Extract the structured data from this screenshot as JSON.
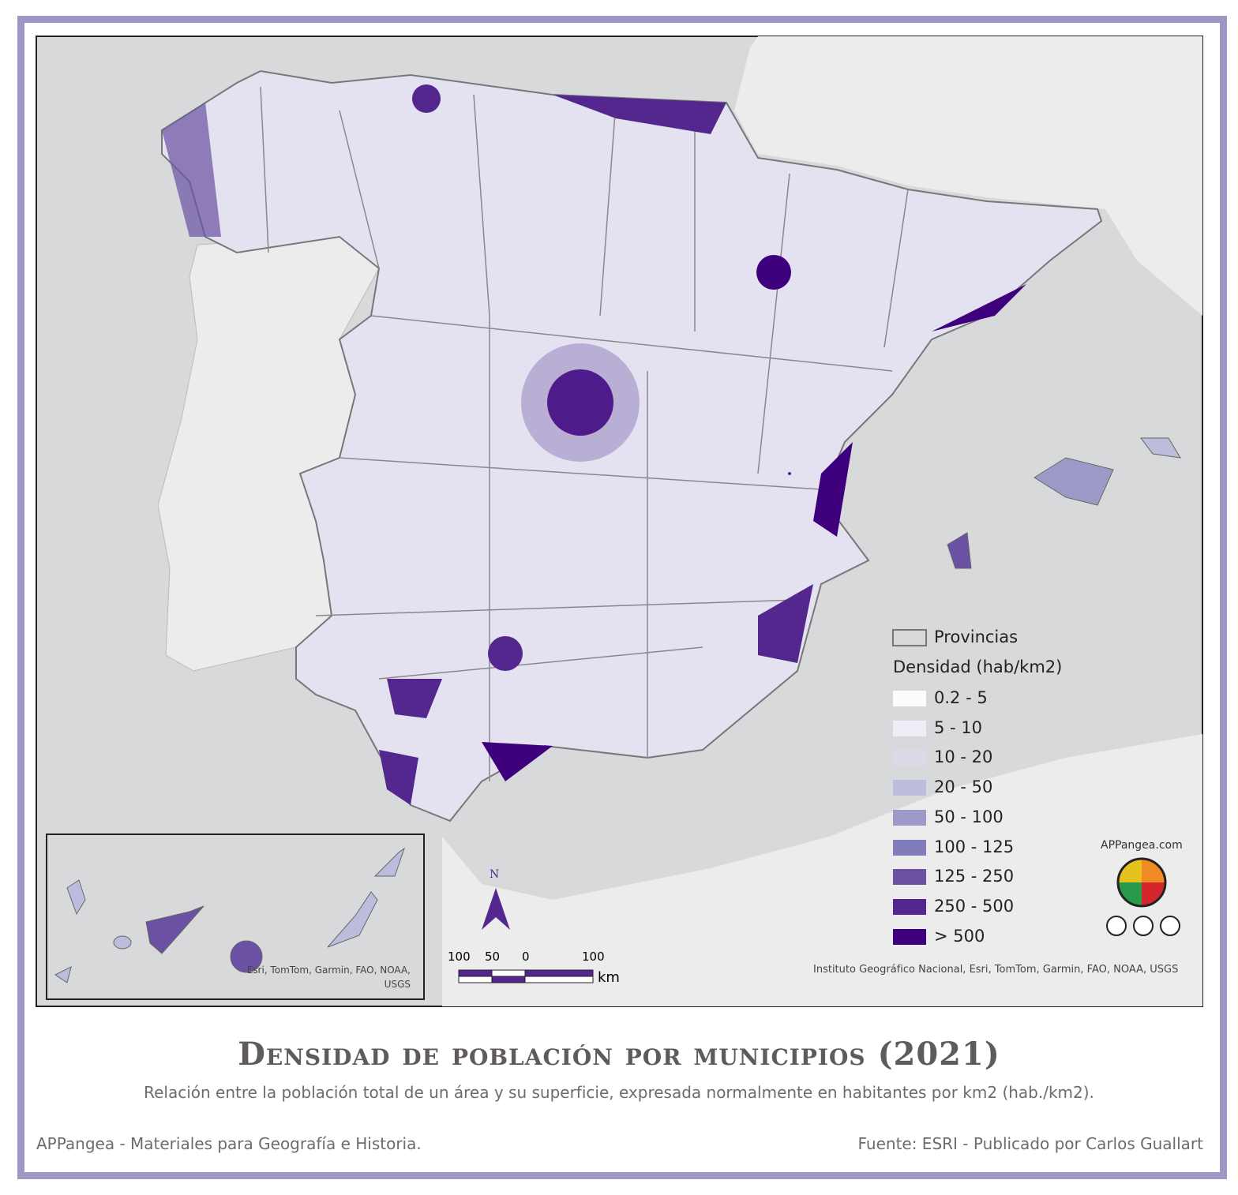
{
  "map": {
    "title": "Densidad de población por municipios (2021)",
    "subtitle": "Relación entre la población total de un área y su superficie, expresada normalmente en habitantes por km2 (hab./km2).",
    "legend": {
      "boundary": "Provincias",
      "title": "Densidad (hab/km2)",
      "classes": [
        {
          "label": "0.2 - 5",
          "color": "#fcfbfd"
        },
        {
          "label": "5 - 10",
          "color": "#efedf5"
        },
        {
          "label": "10 - 20",
          "color": "#dadaeb"
        },
        {
          "label": "20 - 50",
          "color": "#bcbddc"
        },
        {
          "label": "50 - 100",
          "color": "#9e9ac8"
        },
        {
          "label": "100 - 125",
          "color": "#807dba"
        },
        {
          "label": "125 - 250",
          "color": "#6a51a3"
        },
        {
          "label": "250 - 500",
          "color": "#54278f"
        },
        {
          "label": "> 500",
          "color": "#3f007d"
        }
      ]
    },
    "attribution": "Instituto Geográfico Nacional, Esri, TomTom, Garmin, FAO, NOAA, USGS",
    "inset_attribution": "Esri, TomTom, Garmin, FAO, NOAA, USGS",
    "north": "N",
    "scale": {
      "labels": [
        "100",
        "50",
        "0",
        "100"
      ],
      "unit": "km"
    },
    "logo": "APPangea.com"
  },
  "footer": {
    "left": "APPangea - Materiales para Geografía e Historia.",
    "right": "Fuente: ESRI - Publicado por Carlos Guallart"
  }
}
